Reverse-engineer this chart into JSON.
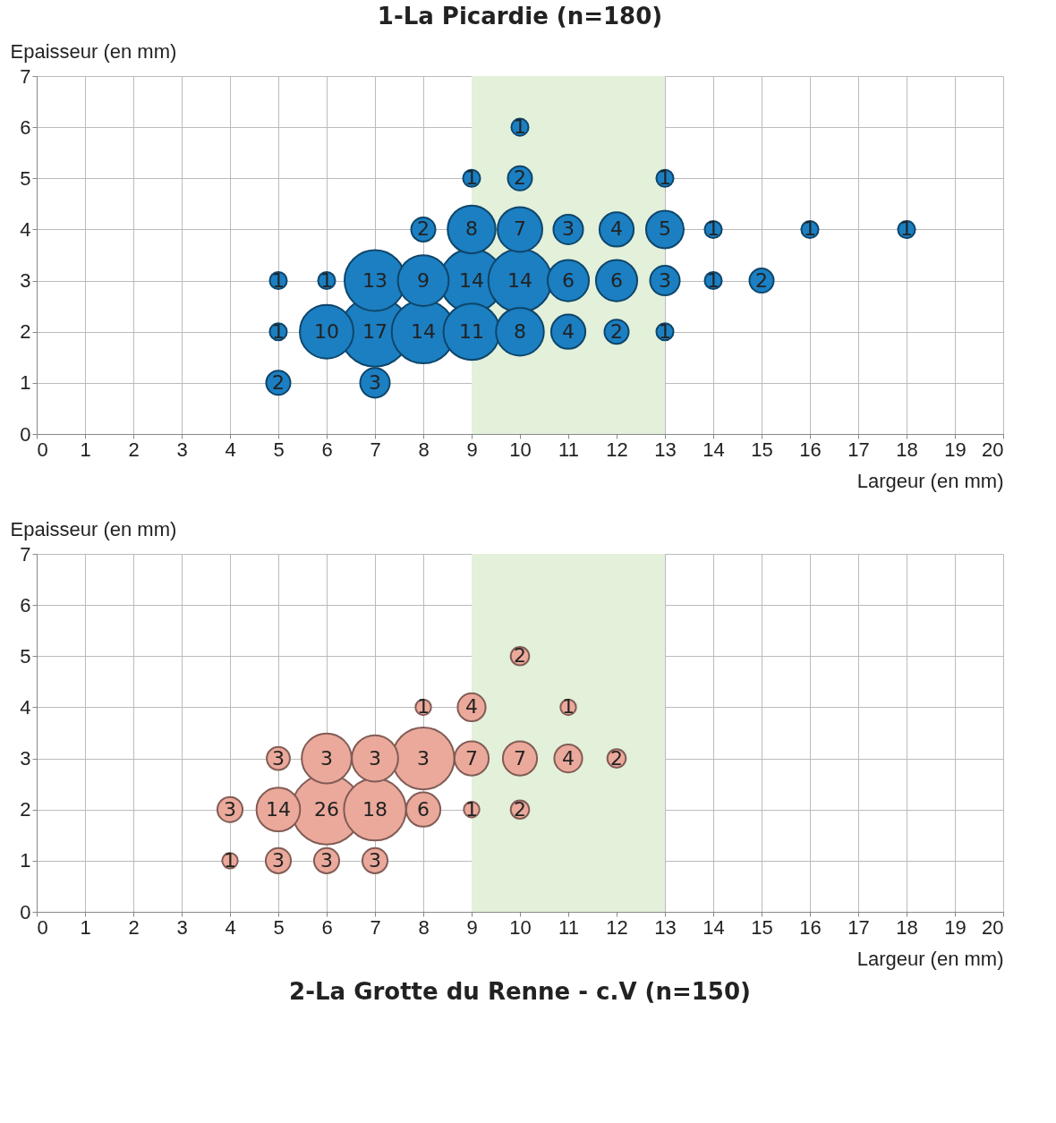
{
  "chart_data": [
    {
      "type": "bubble",
      "title": "1-La Picardie (n=180)",
      "xlabel": "Largeur (en mm)",
      "ylabel": "Epaisseur (en mm)",
      "xlim": [
        0,
        20
      ],
      "xticks": [
        0,
        1,
        2,
        3,
        4,
        5,
        6,
        7,
        8,
        9,
        10,
        11,
        12,
        13,
        14,
        15,
        16,
        17,
        18,
        19,
        20
      ],
      "ylim": [
        0,
        7
      ],
      "yticks": [
        0,
        1,
        2,
        3,
        4,
        5,
        6,
        7
      ],
      "grid": true,
      "bands": [
        {
          "axis": "x",
          "from": 9,
          "to": 13,
          "color": "#e3f0da"
        }
      ],
      "series": [
        {
          "color": "#1b7fc2",
          "x": [
            10,
            9,
            10,
            13,
            8,
            9,
            10,
            11,
            12,
            13,
            14,
            16,
            18,
            5,
            6,
            7,
            8,
            9,
            10,
            11,
            12,
            13,
            14,
            15,
            5,
            6,
            7,
            8,
            9,
            10,
            11,
            12,
            13,
            5,
            7
          ],
          "values": [
            6,
            5,
            5,
            5,
            4,
            4,
            4,
            4,
            4,
            4,
            4,
            4,
            4,
            3,
            3,
            3,
            3,
            3,
            3,
            3,
            3,
            3,
            3,
            3,
            2,
            2,
            2,
            2,
            2,
            2,
            2,
            2,
            2,
            1,
            1
          ],
          "sizes": [
            0.06,
            0.06,
            0.12,
            0.06,
            0.12,
            0.47,
            0.41,
            0.18,
            0.24,
            0.29,
            0.06,
            0.06,
            0.06,
            0.06,
            0.06,
            0.76,
            0.53,
            0.82,
            0.82,
            0.35,
            0.35,
            0.18,
            0.06,
            0.12,
            0.06,
            0.59,
            1,
            0.82,
            0.65,
            0.47,
            0.24,
            0.12,
            0.06,
            0.12,
            0.18
          ]
        }
      ],
      "annotations": [
        {
          "text": "1",
          "x": 10,
          "y": 6
        },
        {
          "text": "1",
          "x": 9,
          "y": 5
        },
        {
          "text": "2",
          "x": 10,
          "y": 5
        },
        {
          "text": "1",
          "x": 13,
          "y": 5
        },
        {
          "text": "2",
          "x": 8,
          "y": 4
        },
        {
          "text": "8",
          "x": 9,
          "y": 4
        },
        {
          "text": "7",
          "x": 10,
          "y": 4
        },
        {
          "text": "3",
          "x": 11,
          "y": 4
        },
        {
          "text": "4",
          "x": 12,
          "y": 4
        },
        {
          "text": "5",
          "x": 13,
          "y": 4
        },
        {
          "text": "1",
          "x": 14,
          "y": 4
        },
        {
          "text": "1",
          "x": 16,
          "y": 4
        },
        {
          "text": "1",
          "x": 18,
          "y": 4
        },
        {
          "text": "1",
          "x": 5,
          "y": 3
        },
        {
          "text": "1",
          "x": 6,
          "y": 3
        },
        {
          "text": "13",
          "x": 7,
          "y": 3
        },
        {
          "text": "9",
          "x": 8,
          "y": 3
        },
        {
          "text": "14",
          "x": 9,
          "y": 3
        },
        {
          "text": "14",
          "x": 10,
          "y": 3
        },
        {
          "text": "6",
          "x": 11,
          "y": 3
        },
        {
          "text": "6",
          "x": 12,
          "y": 3
        },
        {
          "text": "3",
          "x": 13,
          "y": 3
        },
        {
          "text": "1",
          "x": 14,
          "y": 3
        },
        {
          "text": "2",
          "x": 15,
          "y": 3
        },
        {
          "text": "1",
          "x": 5,
          "y": 2
        },
        {
          "text": "10",
          "x": 6,
          "y": 2
        },
        {
          "text": "17",
          "x": 7,
          "y": 2
        },
        {
          "text": "14",
          "x": 8,
          "y": 2
        },
        {
          "text": "11",
          "x": 9,
          "y": 2
        },
        {
          "text": "8",
          "x": 10,
          "y": 2
        },
        {
          "text": "4",
          "x": 11,
          "y": 2
        },
        {
          "text": "2",
          "x": 12,
          "y": 2
        },
        {
          "text": "1",
          "x": 13,
          "y": 2
        },
        {
          "text": "2",
          "x": 5,
          "y": 1
        },
        {
          "text": "3",
          "x": 7,
          "y": 1
        }
      ]
    },
    {
      "type": "bubble",
      "title": "2-La Grotte du Renne - c.V (n=150)",
      "xlabel": "Largeur (en mm)",
      "ylabel": "Epaisseur (en mm)",
      "xlim": [
        0,
        20
      ],
      "xticks": [
        0,
        1,
        2,
        3,
        4,
        5,
        6,
        7,
        8,
        9,
        10,
        11,
        12,
        13,
        14,
        15,
        16,
        17,
        18,
        19,
        20
      ],
      "ylim": [
        0,
        7
      ],
      "yticks": [
        0,
        1,
        2,
        3,
        4,
        5,
        6,
        7
      ],
      "grid": true,
      "bands": [
        {
          "axis": "x",
          "from": 9,
          "to": 13,
          "color": "#e3f0da"
        }
      ],
      "series": [
        {
          "color": "#eba99b",
          "x": [
            10,
            8,
            9,
            11,
            5,
            6,
            7,
            8,
            9,
            10,
            11,
            12,
            4,
            5,
            6,
            7,
            8,
            9,
            10,
            4,
            5,
            6,
            7
          ],
          "values": [
            5,
            4,
            4,
            4,
            3,
            3,
            3,
            3,
            3,
            3,
            3,
            3,
            2,
            2,
            2,
            2,
            2,
            2,
            2,
            1,
            1,
            1,
            1
          ],
          "sizes": [
            0.07,
            0.05,
            0.16,
            0.05,
            0.11,
            0.51,
            0.44,
            0.79,
            0.24,
            0.24,
            0.16,
            0.07,
            0.13,
            0.39,
            1,
            0.79,
            0.24,
            0.05,
            0.07,
            0.05,
            0.13,
            0.13,
            0.13
          ]
        }
      ],
      "annotations": [
        {
          "text": "2",
          "x": 10,
          "y": 5
        },
        {
          "text": "1",
          "x": 8,
          "y": 4
        },
        {
          "text": "4",
          "x": 9,
          "y": 4
        },
        {
          "text": "1",
          "x": 11,
          "y": 4
        },
        {
          "text": "3",
          "x": 5,
          "y": 3
        },
        {
          "text": "3",
          "x": 6,
          "y": 3
        },
        {
          "text": "3",
          "x": 7,
          "y": 3
        },
        {
          "text": "3",
          "x": 8,
          "y": 3
        },
        {
          "text": "7",
          "x": 9,
          "y": 3
        },
        {
          "text": "7",
          "x": 10,
          "y": 3
        },
        {
          "text": "4",
          "x": 11,
          "y": 3
        },
        {
          "text": "2",
          "x": 12,
          "y": 3
        },
        {
          "text": "3",
          "x": 4,
          "y": 2
        },
        {
          "text": "14",
          "x": 5,
          "y": 2
        },
        {
          "text": "26",
          "x": 6,
          "y": 2
        },
        {
          "text": "18",
          "x": 7,
          "y": 2
        },
        {
          "text": "6",
          "x": 8,
          "y": 2
        },
        {
          "text": "1",
          "x": 9,
          "y": 2
        },
        {
          "text": "2",
          "x": 10,
          "y": 2
        },
        {
          "text": "1",
          "x": 4,
          "y": 1
        },
        {
          "text": "3",
          "x": 5,
          "y": 1
        },
        {
          "text": "3",
          "x": 6,
          "y": 1
        },
        {
          "text": "3",
          "x": 7,
          "y": 1
        }
      ]
    }
  ]
}
